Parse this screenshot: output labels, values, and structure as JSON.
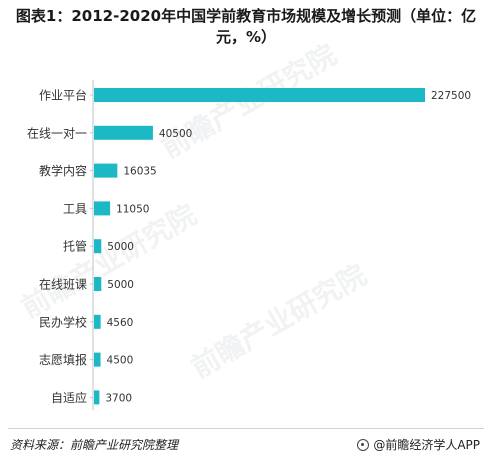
{
  "title": "图表1：2012-2020年中国学前教育市场规模及增长预测（单位：亿元，%）",
  "watermark": "前瞻产业研究院",
  "footer": {
    "source": "资料来源：前瞻产业研究院整理",
    "credit": "@前瞻经济学人APP"
  },
  "colors": {
    "bar": "#1cb8c5"
  },
  "chart_data": {
    "type": "bar",
    "orientation": "horizontal",
    "title": "图表1：2012-2020年中国学前教育市场规模及增长预测（单位：亿元，%）",
    "xlabel": "",
    "ylabel": "",
    "categories": [
      "作业平台",
      "在线一对一",
      "教学内容",
      "工具",
      "托管",
      "在线班课",
      "民办学校",
      "志愿填报",
      "自适应"
    ],
    "values": [
      227500,
      40500,
      16035,
      11050,
      5000,
      5000,
      4560,
      4500,
      3700
    ],
    "xlim": [
      0,
      227500
    ],
    "grid": false,
    "legend": "none"
  }
}
